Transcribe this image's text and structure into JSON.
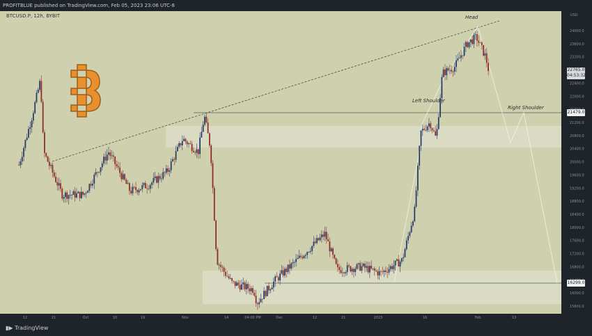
{
  "header": {
    "publisher_line": "PROFITBLUE published on TradingView.com, Feb 05, 2023 23:06 UTC-8",
    "symbol_line": "BTCUSD.P, 12h, BYBIT"
  },
  "footer": {
    "brand": "TradingView"
  },
  "colors": {
    "plot_bg": "#cfd0ad",
    "dark_bg": "#1f232a",
    "up_candle": "#2a3b6c",
    "down_candle": "#8e2e2b",
    "zone_fill": "#e2e4d4",
    "trendline": "#4b4e52",
    "pattern_line": "#f1f2ec",
    "btc_orange": "#e8912c"
  },
  "price_tags": {
    "current": "22765.0",
    "countdown": "04:53:32",
    "neckline": "21479.0",
    "support": "16299.0"
  },
  "annotations": {
    "head": "Head",
    "left_shoulder": "Left Shoulder",
    "right_shoulder": "Right Shoulder"
  },
  "chart_data": {
    "type": "line",
    "title": "",
    "currency": "USD",
    "y_axis": {
      "label": "USD",
      "ticks": [
        24000,
        23600,
        23200,
        22800,
        22400,
        22000,
        21600,
        21200,
        20800,
        20400,
        20000,
        19600,
        19200,
        18800,
        18400,
        18000,
        17600,
        17200,
        16800,
        16400,
        16000,
        15600
      ],
      "ylim": [
        15200,
        24600
      ]
    },
    "x_axis": {
      "tick_labels": [
        "12",
        "21",
        "Oct",
        "10",
        "19",
        "Nov",
        "14",
        "04:00 PM",
        "Dec",
        "12",
        "21",
        "2023",
        "16",
        "Feb",
        "13"
      ]
    },
    "price_series": [
      {
        "date": "2022-09-06",
        "price": 19900
      },
      {
        "date": "2022-09-10",
        "price": 21300
      },
      {
        "date": "2022-09-13",
        "price": 22500
      },
      {
        "date": "2022-09-14",
        "price": 20300
      },
      {
        "date": "2022-09-20",
        "price": 19000
      },
      {
        "date": "2022-09-27",
        "price": 19000
      },
      {
        "date": "2022-10-05",
        "price": 20300
      },
      {
        "date": "2022-10-12",
        "price": 19100
      },
      {
        "date": "2022-10-18",
        "price": 19300
      },
      {
        "date": "2022-10-24",
        "price": 19700
      },
      {
        "date": "2022-10-29",
        "price": 20700
      },
      {
        "date": "2022-11-03",
        "price": 20300
      },
      {
        "date": "2022-11-05",
        "price": 21400
      },
      {
        "date": "2022-11-07",
        "price": 20400
      },
      {
        "date": "2022-11-09",
        "price": 17000
      },
      {
        "date": "2022-11-11",
        "price": 16700
      },
      {
        "date": "2022-11-14",
        "price": 16300
      },
      {
        "date": "2022-11-21",
        "price": 16100
      },
      {
        "date": "2022-11-22",
        "price": 15700
      },
      {
        "date": "2022-11-28",
        "price": 16400
      },
      {
        "date": "2022-12-05",
        "price": 17000
      },
      {
        "date": "2022-12-14",
        "price": 17800
      },
      {
        "date": "2022-12-18",
        "price": 16700
      },
      {
        "date": "2022-12-26",
        "price": 16800
      },
      {
        "date": "2023-01-01",
        "price": 16600
      },
      {
        "date": "2023-01-08",
        "price": 17000
      },
      {
        "date": "2023-01-12",
        "price": 18500
      },
      {
        "date": "2023-01-14",
        "price": 20900
      },
      {
        "date": "2023-01-17",
        "price": 21200
      },
      {
        "date": "2023-01-19",
        "price": 20700
      },
      {
        "date": "2023-01-21",
        "price": 22700
      },
      {
        "date": "2023-01-25",
        "price": 22900
      },
      {
        "date": "2023-01-29",
        "price": 23600
      },
      {
        "date": "2023-02-01",
        "price": 23800
      },
      {
        "date": "2023-02-04",
        "price": 23200
      },
      {
        "date": "2023-02-05",
        "price": 22765
      }
    ],
    "levels": {
      "neckline": 21479,
      "support": 16299,
      "current": 22765
    },
    "zones": [
      {
        "from": 20500,
        "to": 21100
      },
      {
        "from": 15700,
        "to": 16700
      }
    ],
    "trendline": [
      {
        "date": "2022-09-20",
        "price": 20000
      },
      {
        "date": "2022-11-05",
        "price": 21400
      },
      {
        "date": "2023-02-03",
        "price": 24300
      }
    ],
    "projection": [
      {
        "date": "2023-01-24",
        "price": 21000
      },
      {
        "date": "2023-02-01",
        "price": 24000
      },
      {
        "date": "2023-02-05",
        "price": 22800
      },
      {
        "date": "2023-02-09",
        "price": 20600
      },
      {
        "date": "2023-02-12",
        "price": 21500
      },
      {
        "date": "2023-02-21",
        "price": 16300
      }
    ]
  }
}
